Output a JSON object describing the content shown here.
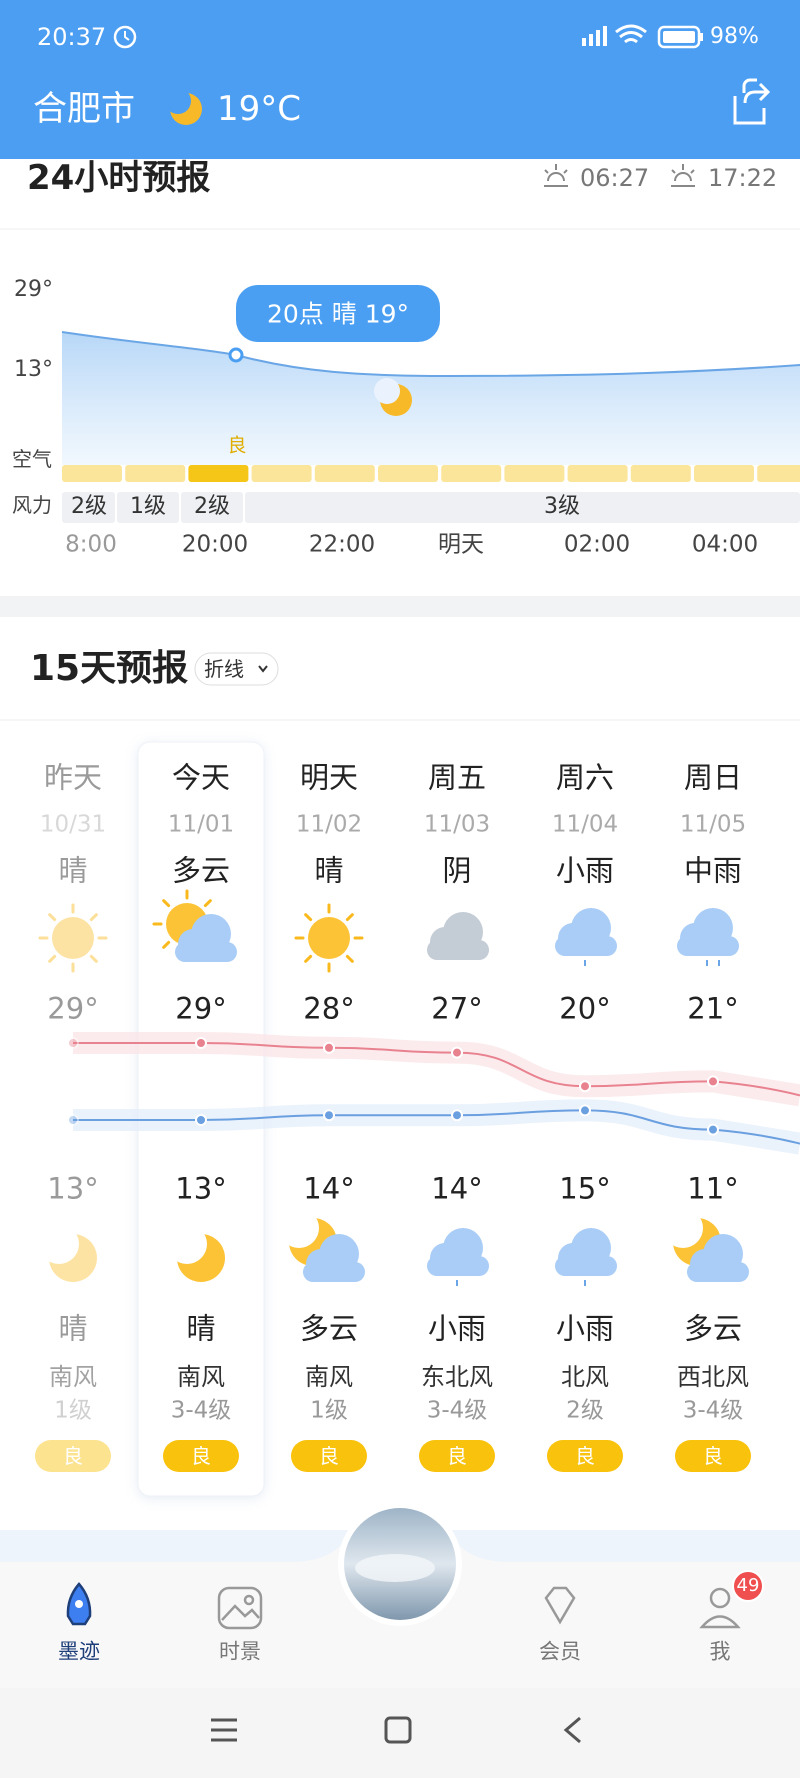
{
  "status_bar": {
    "time": "20:37",
    "battery": "98%"
  },
  "header": {
    "city": "合肥市",
    "temperature": "19°C"
  },
  "hourly": {
    "title": "24小时预报",
    "sunrise": "06:27",
    "sunset": "17:22",
    "y_labels": [
      "29°",
      "13°"
    ],
    "tooltip": "20点 晴 19°",
    "air_label": "空气",
    "air_quality": "良",
    "wind_label": "风力",
    "wind_levels": [
      "2级",
      "1级",
      "2级",
      "3级"
    ],
    "times": [
      "8:00",
      "20:00",
      "22:00",
      "明天",
      "02:00",
      "04:00"
    ]
  },
  "daily": {
    "title": "15天预报",
    "mode": "折线",
    "days": [
      {
        "name": "昨天",
        "date": "10/31",
        "weather_day": "晴",
        "high": {
          "value": 29,
          "label": "29°"
        },
        "low": {
          "value": 13,
          "label": "13°"
        },
        "weather_night": "晴",
        "wind_direction": "南风",
        "wind_level": "1级",
        "air_quality": "良"
      },
      {
        "name": "今天",
        "date": "11/01",
        "weather_day": "多云",
        "high": {
          "value": 29,
          "label": "29°"
        },
        "low": {
          "value": 13,
          "label": "13°"
        },
        "weather_night": "晴",
        "wind_direction": "南风",
        "wind_level": "3-4级",
        "air_quality": "良"
      },
      {
        "name": "明天",
        "date": "11/02",
        "weather_day": "晴",
        "high": {
          "value": 28,
          "label": "28°"
        },
        "low": {
          "value": 14,
          "label": "14°"
        },
        "weather_night": "多云",
        "wind_direction": "南风",
        "wind_level": "1级",
        "air_quality": "良"
      },
      {
        "name": "周五",
        "date": "11/03",
        "weather_day": "阴",
        "high": {
          "value": 27,
          "label": "27°"
        },
        "low": {
          "value": 14,
          "label": "14°"
        },
        "weather_night": "小雨",
        "wind_direction": "东北风",
        "wind_level": "3-4级",
        "air_quality": "良"
      },
      {
        "name": "周六",
        "date": "11/04",
        "weather_day": "小雨",
        "high": {
          "value": 20,
          "label": "20°"
        },
        "low": {
          "value": 15,
          "label": "15°"
        },
        "weather_night": "小雨",
        "wind_direction": "北风",
        "wind_level": "2级",
        "air_quality": "良"
      },
      {
        "name": "周日",
        "date": "11/05",
        "weather_day": "中雨",
        "high": {
          "value": 21,
          "label": "21°"
        },
        "low": {
          "value": 11,
          "label": "11°"
        },
        "weather_night": "多云",
        "wind_direction": "西北风",
        "wind_level": "3-4级",
        "air_quality": "良"
      }
    ]
  },
  "nav": {
    "items": [
      "墨迹",
      "时景",
      "会员",
      "我"
    ],
    "badge": "49"
  }
}
